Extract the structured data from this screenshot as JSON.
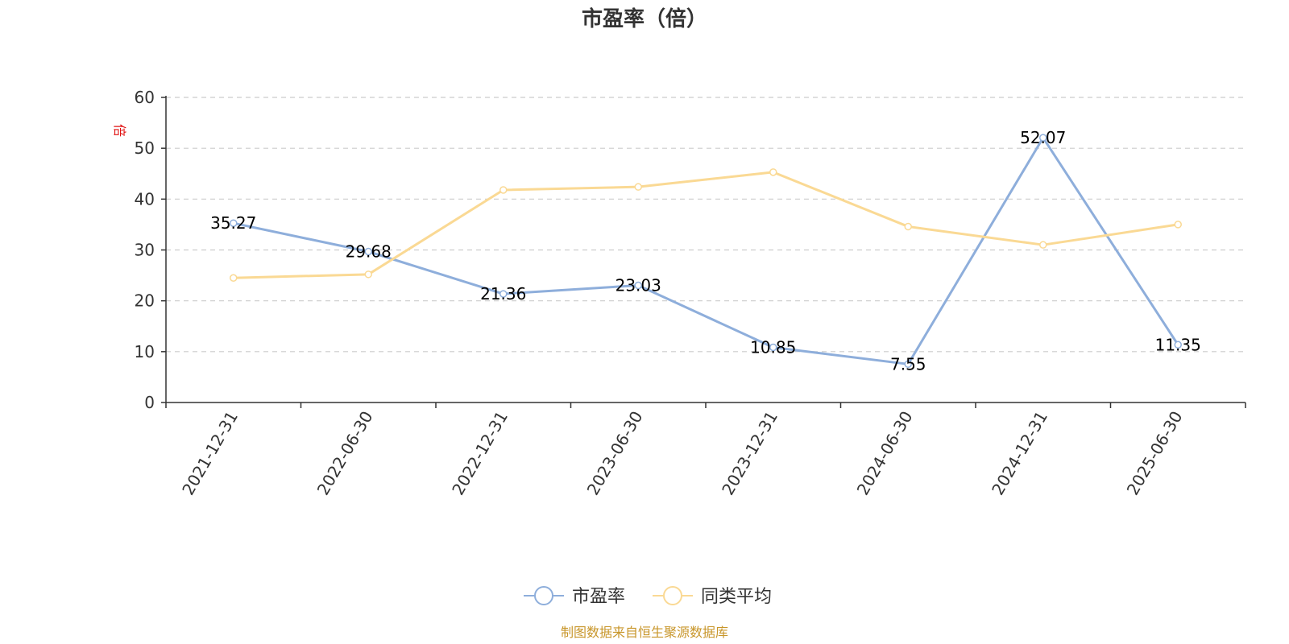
{
  "chart_data": {
    "type": "line",
    "title": "市盈率（倍）",
    "ylabel": "倍",
    "ylim": [
      0,
      60
    ],
    "yticks": [
      0,
      10,
      20,
      30,
      40,
      50,
      60
    ],
    "grid": true,
    "legend_position": "bottom-center",
    "categories": [
      "2021-12-31",
      "2022-06-30",
      "2022-12-31",
      "2023-06-30",
      "2023-12-31",
      "2024-06-30",
      "2024-12-31",
      "2025-06-30"
    ],
    "series": [
      {
        "name": "市盈率",
        "color": "#8eaedb",
        "values": [
          35.27,
          29.68,
          21.36,
          23.03,
          10.85,
          7.55,
          52.07,
          11.35
        ],
        "labels": [
          "35.27",
          "29.68",
          "21.36",
          "23.03",
          "10.85",
          "7.55",
          "52.07",
          "11.35"
        ]
      },
      {
        "name": "同类平均",
        "color": "#fad994",
        "values": [
          24.5,
          25.2,
          41.8,
          42.4,
          45.3,
          34.6,
          31.0,
          35.0
        ]
      }
    ]
  },
  "source_note": "制图数据来自恒生聚源数据库"
}
